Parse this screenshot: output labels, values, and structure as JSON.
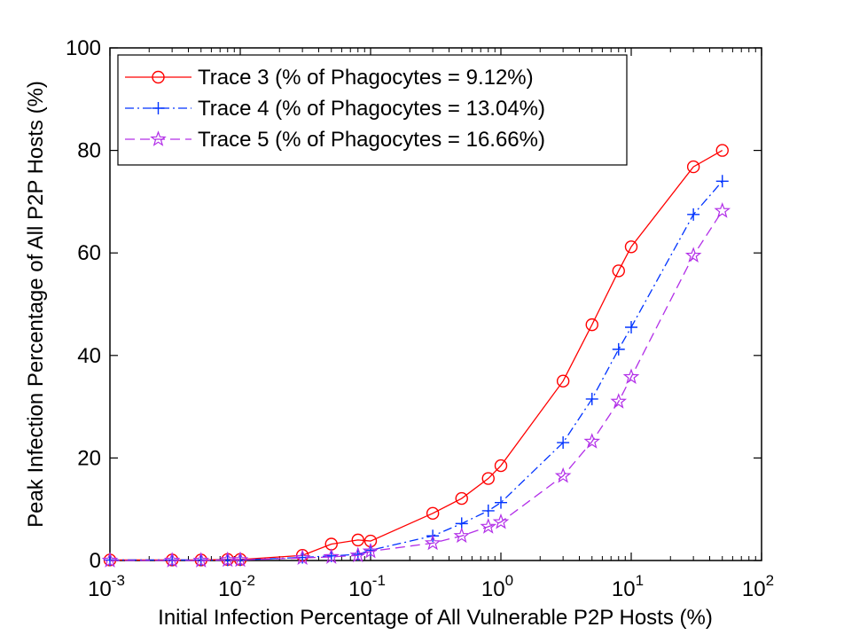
{
  "chart_data": {
    "type": "line",
    "title": "",
    "xlabel": "Initial Infection Percentage of All Vulnerable P2P Hosts (%)",
    "ylabel": "Peak Infection Percentage of All P2P Hosts (%)",
    "xscale": "log",
    "xlim": [
      0.001,
      100
    ],
    "ylim": [
      0,
      100
    ],
    "x_ticks": [
      {
        "value": 0.001,
        "base": "10",
        "exp": "-3"
      },
      {
        "value": 0.01,
        "base": "10",
        "exp": "-2"
      },
      {
        "value": 0.1,
        "base": "10",
        "exp": "-1"
      },
      {
        "value": 1,
        "base": "10",
        "exp": "0"
      },
      {
        "value": 10,
        "base": "10",
        "exp": "1"
      },
      {
        "value": 100,
        "base": "10",
        "exp": "2"
      }
    ],
    "y_ticks": [
      0,
      20,
      40,
      60,
      80,
      100
    ],
    "grid": false,
    "legend_position": "top-left",
    "series": [
      {
        "name": "Trace 3 (% of Phagocytes = 9.12%)",
        "color": "#ff0000",
        "line_style": "solid",
        "marker": "circle",
        "points": [
          [
            0.001,
            0.1
          ],
          [
            0.003,
            0.1
          ],
          [
            0.005,
            0.1
          ],
          [
            0.008,
            0.2
          ],
          [
            0.01,
            0.2
          ],
          [
            0.03,
            1.0
          ],
          [
            0.05,
            3.2
          ],
          [
            0.08,
            4.0
          ],
          [
            0.1,
            3.8
          ],
          [
            0.3,
            9.2
          ],
          [
            0.5,
            12.1
          ],
          [
            0.8,
            16.0
          ],
          [
            1,
            18.5
          ],
          [
            3,
            35.0
          ],
          [
            5,
            46.0
          ],
          [
            8,
            56.5
          ],
          [
            10,
            61.2
          ],
          [
            30,
            76.8
          ],
          [
            50,
            80.0
          ]
        ]
      },
      {
        "name": "Trace 4 (% of Phagocytes = 13.04%)",
        "color": "#0033ff",
        "line_style": "dash-dot",
        "marker": "plus",
        "points": [
          [
            0.001,
            0.1
          ],
          [
            0.003,
            0.1
          ],
          [
            0.005,
            0.1
          ],
          [
            0.008,
            0.1
          ],
          [
            0.01,
            0.1
          ],
          [
            0.03,
            0.6
          ],
          [
            0.05,
            0.9
          ],
          [
            0.08,
            1.2
          ],
          [
            0.1,
            2.0
          ],
          [
            0.3,
            4.8
          ],
          [
            0.5,
            7.2
          ],
          [
            0.8,
            9.7
          ],
          [
            1,
            11.3
          ],
          [
            3,
            23.0
          ],
          [
            5,
            31.5
          ],
          [
            8,
            41.2
          ],
          [
            10,
            45.5
          ],
          [
            30,
            67.5
          ],
          [
            50,
            74.0
          ]
        ]
      },
      {
        "name": "Trace 5 (% of Phagocytes = 16.66%)",
        "color": "#b22ee8",
        "line_style": "dashed",
        "marker": "pentagram",
        "points": [
          [
            0.001,
            0.0
          ],
          [
            0.003,
            0.0
          ],
          [
            0.005,
            0.0
          ],
          [
            0.008,
            0.1
          ],
          [
            0.01,
            0.1
          ],
          [
            0.03,
            0.5
          ],
          [
            0.05,
            0.7
          ],
          [
            0.08,
            1.0
          ],
          [
            0.1,
            1.8
          ],
          [
            0.3,
            3.4
          ],
          [
            0.5,
            4.8
          ],
          [
            0.8,
            6.6
          ],
          [
            1,
            7.5
          ],
          [
            3,
            16.5
          ],
          [
            5,
            23.2
          ],
          [
            8,
            31.0
          ],
          [
            10,
            35.8
          ],
          [
            30,
            59.5
          ],
          [
            50,
            68.2
          ]
        ]
      }
    ]
  }
}
